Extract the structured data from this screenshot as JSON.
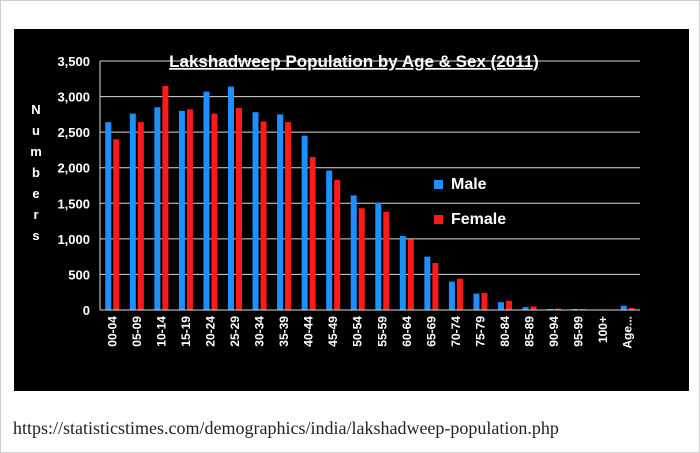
{
  "source_url": "https://statisticstimes.com/demographics/india/lakshadweep-population.php",
  "chart_data": {
    "type": "bar",
    "title": "Lakshadweep Population by Age & Sex (2011)",
    "xlabel": "",
    "ylabel": "Numbers",
    "ylim": [
      0,
      3500
    ],
    "yticks": [
      0,
      500,
      1000,
      1500,
      2000,
      2500,
      3000,
      3500
    ],
    "ytick_labels": [
      "0",
      "500",
      "1,000",
      "1,500",
      "2,000",
      "2,500",
      "3,000",
      "3,500"
    ],
    "grid": true,
    "legend_position": "right-center",
    "categories": [
      "00-04",
      "05-09",
      "10-14",
      "15-19",
      "20-24",
      "25-29",
      "30-34",
      "35-39",
      "40-44",
      "45-49",
      "50-54",
      "55-59",
      "60-64",
      "65-69",
      "70-74",
      "75-79",
      "80-84",
      "85-89",
      "90-94",
      "95-99",
      "100+",
      "Age..."
    ],
    "series": [
      {
        "name": "Male",
        "color": "#1e8fff",
        "values": [
          2640,
          2760,
          2850,
          2800,
          3070,
          3140,
          2780,
          2750,
          2450,
          1960,
          1610,
          1510,
          1040,
          750,
          400,
          230,
          110,
          40,
          15,
          15,
          5,
          60
        ]
      },
      {
        "name": "Female",
        "color": "#ff1a1a",
        "values": [
          2400,
          2640,
          3150,
          2820,
          2760,
          2840,
          2650,
          2640,
          2150,
          1830,
          1430,
          1380,
          990,
          660,
          440,
          240,
          130,
          50,
          20,
          15,
          5,
          30
        ]
      }
    ]
  }
}
